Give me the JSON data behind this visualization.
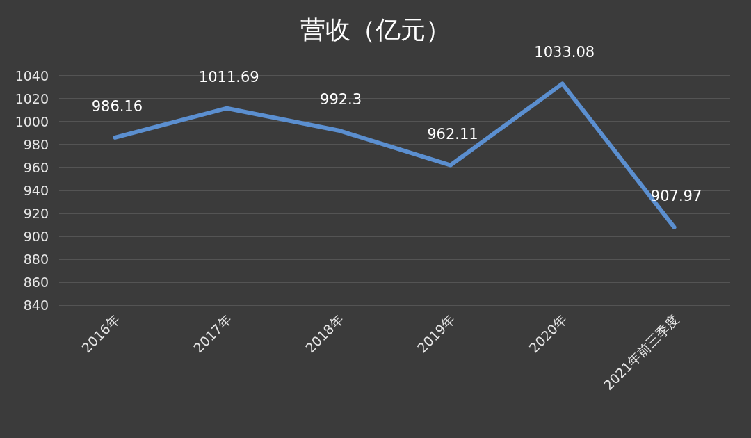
{
  "chart_data": {
    "type": "line",
    "title": "营收（亿元）",
    "categories": [
      "2016年",
      "2017年",
      "2018年",
      "2019年",
      "2020年",
      "2021年前三季度"
    ],
    "values": [
      986.16,
      1011.69,
      992.3,
      962.11,
      1033.08,
      907.97
    ],
    "color": "#5b8fd0",
    "ylim": [
      840,
      1040
    ],
    "yticks": [
      840,
      860,
      880,
      900,
      920,
      940,
      960,
      980,
      1000,
      1020,
      1040
    ],
    "grid": "y",
    "data_labels": true
  }
}
